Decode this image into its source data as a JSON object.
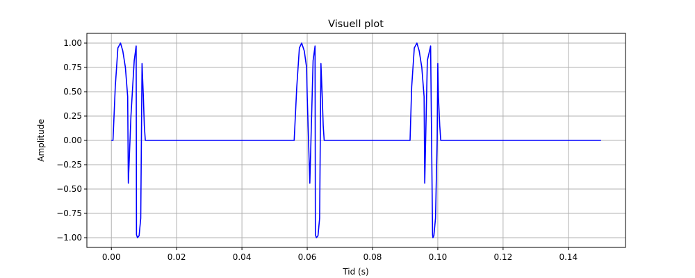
{
  "chart_data": {
    "type": "line",
    "title": "Visuell plot",
    "xlabel": "Tid (s)",
    "ylabel": "Amplitude",
    "xlim": [
      -0.0075,
      0.1575
    ],
    "ylim": [
      -1.1,
      1.1
    ],
    "grid": true,
    "xticks": [
      0.0,
      0.02,
      0.04,
      0.06,
      0.08,
      0.1,
      0.12,
      0.14
    ],
    "xtick_labels": [
      "0.00",
      "0.02",
      "0.04",
      "0.06",
      "0.08",
      "0.10",
      "0.12",
      "0.14"
    ],
    "yticks": [
      -1.0,
      -0.75,
      -0.5,
      -0.25,
      0.0,
      0.25,
      0.5,
      0.75,
      1.0
    ],
    "ytick_labels": [
      "−1.00",
      "−0.75",
      "−0.50",
      "−0.25",
      "0.00",
      "0.25",
      "0.50",
      "0.75",
      "1.00"
    ],
    "series": [
      {
        "color": "#0000ff",
        "x": [
          0.0,
          0.0005,
          0.0012,
          0.002,
          0.0028,
          0.0035,
          0.0043,
          0.005,
          0.0052,
          0.006,
          0.007,
          0.0076,
          0.0077,
          0.008,
          0.0085,
          0.009,
          0.0092,
          0.0094,
          0.0098,
          0.0101,
          0.0104,
          0.0108,
          0.015,
          0.03,
          0.045,
          0.0555,
          0.056,
          0.0568,
          0.0576,
          0.0583,
          0.0591,
          0.0598,
          0.06,
          0.0608,
          0.0618,
          0.0624,
          0.0625,
          0.0628,
          0.0633,
          0.0638,
          0.064,
          0.0642,
          0.0646,
          0.0649,
          0.0652,
          0.0656,
          0.07,
          0.08,
          0.0915,
          0.092,
          0.0928,
          0.0936,
          0.0943,
          0.0951,
          0.0958,
          0.096,
          0.0968,
          0.0978,
          0.0984,
          0.0985,
          0.0988,
          0.0993,
          0.0998,
          0.1,
          0.1002,
          0.1006,
          0.1009,
          0.1012,
          0.1016,
          0.11,
          0.13,
          0.15
        ],
        "y": [
          0.0,
          0.0,
          0.55,
          0.95,
          1.0,
          0.92,
          0.75,
          0.45,
          -0.44,
          0.25,
          0.82,
          0.97,
          -0.97,
          -1.0,
          -0.98,
          -0.8,
          0.0,
          0.79,
          0.45,
          0.15,
          0.0,
          0.0,
          0.0,
          0.0,
          0.0,
          0.0,
          0.0,
          0.55,
          0.95,
          1.0,
          0.92,
          0.75,
          0.45,
          -0.44,
          0.82,
          0.97,
          -0.97,
          -1.0,
          -0.98,
          -0.8,
          0.0,
          0.79,
          0.45,
          0.15,
          0.0,
          0.0,
          0.0,
          0.0,
          0.0,
          0.55,
          0.95,
          1.0,
          0.92,
          0.75,
          0.45,
          -0.44,
          0.82,
          0.97,
          -0.97,
          -1.0,
          -0.98,
          -0.8,
          0.0,
          0.79,
          0.45,
          0.15,
          0.0,
          0.0,
          0.0,
          0.0,
          0.0,
          0.0
        ]
      }
    ]
  }
}
